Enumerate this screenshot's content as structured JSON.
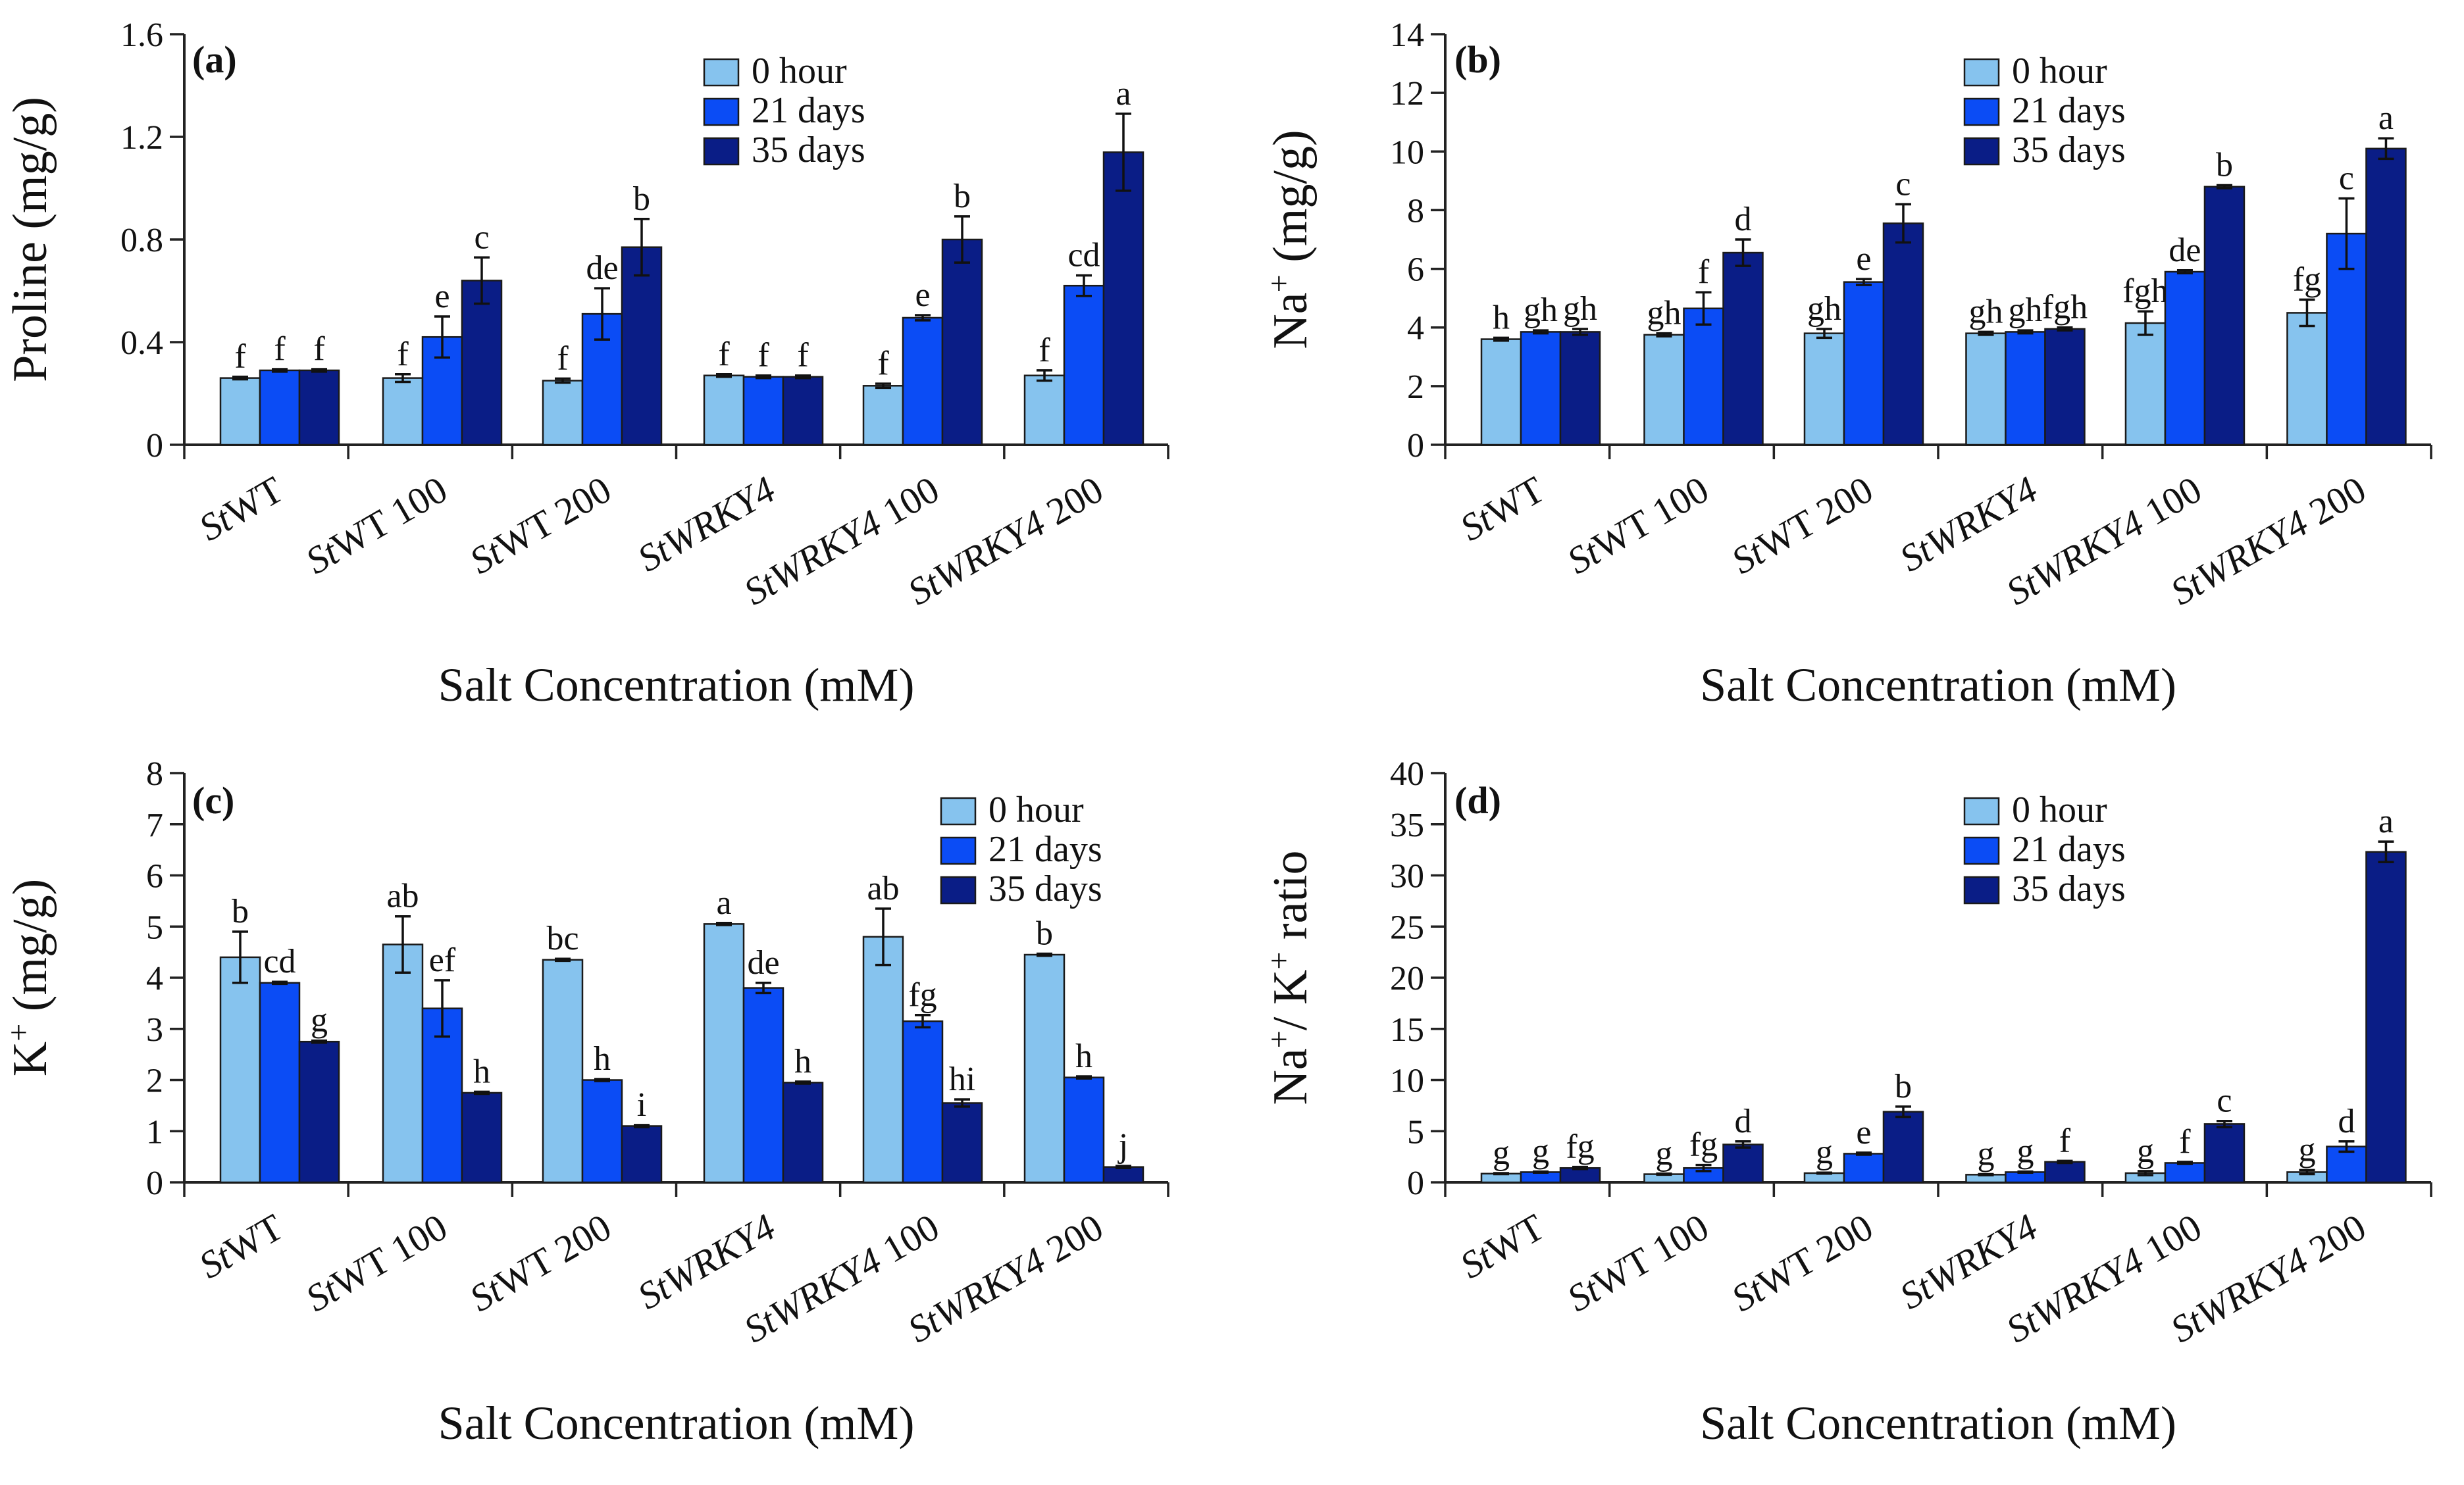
{
  "colors": {
    "s0": "#86c3ee",
    "s1": "#0b4cf5",
    "s2": "#0a1d86"
  },
  "chart_data": [
    {
      "type": "bar",
      "panel_label": "(a)",
      "ylabel": "Proline (mg/g)",
      "ylabel_main": "Proline (mg/g)",
      "xlabel": "Salt Concentration (mM)",
      "ylim": [
        0,
        1.6
      ],
      "yticks": [
        "0",
        "0.4",
        "0.8",
        "1.2",
        "1.6"
      ],
      "ytick_values": [
        0,
        0.4,
        0.8,
        1.2,
        1.6
      ],
      "legend_position": "top-center",
      "categories": [
        {
          "italic": "St",
          "rest": "WT"
        },
        {
          "italic": "St",
          "rest": "WT 100"
        },
        {
          "italic": "St",
          "rest": "WT 200"
        },
        {
          "italic": "StWRKY4",
          "rest": ""
        },
        {
          "italic": "StWRKY4",
          "rest": " 100"
        },
        {
          "italic": "StWRKY4",
          "rest": " 200"
        }
      ],
      "series": [
        {
          "name": "0 hour",
          "values": [
            0.26,
            0.26,
            0.25,
            0.27,
            0.23,
            0.27
          ],
          "errors": [
            0.005,
            0.015,
            0.008,
            0.005,
            0.008,
            0.02
          ],
          "labels": [
            "f",
            "f",
            "f",
            "f",
            "f",
            "f"
          ]
        },
        {
          "name": "21 days",
          "values": [
            0.29,
            0.42,
            0.51,
            0.265,
            0.495,
            0.62
          ],
          "errors": [
            0.005,
            0.08,
            0.1,
            0.005,
            0.01,
            0.04
          ],
          "labels": [
            "f",
            "e",
            "de",
            "f",
            "e",
            "cd"
          ]
        },
        {
          "name": "35 days",
          "values": [
            0.29,
            0.64,
            0.77,
            0.265,
            0.8,
            1.14
          ],
          "errors": [
            0.005,
            0.09,
            0.11,
            0.005,
            0.09,
            0.15
          ],
          "labels": [
            "f",
            "c",
            "b",
            "f",
            "b",
            "a"
          ]
        }
      ]
    },
    {
      "type": "bar",
      "panel_label": "(b)",
      "ylabel": "Na+ (mg/g)",
      "ylabel_main": "Na",
      "ylabel_sup": "+",
      "ylabel_rest": " (mg/g)",
      "xlabel": "Salt Concentration (mM)",
      "ylim": [
        0,
        14
      ],
      "yticks": [
        "0",
        "2",
        "4",
        "6",
        "8",
        "10",
        "12",
        "14"
      ],
      "ytick_values": [
        0,
        2,
        4,
        6,
        8,
        10,
        12,
        14
      ],
      "legend_position": "top-center",
      "categories": [
        {
          "italic": "St",
          "rest": "WT"
        },
        {
          "italic": "St",
          "rest": "WT 100"
        },
        {
          "italic": "St",
          "rest": "WT 200"
        },
        {
          "italic": "StWRKY4",
          "rest": ""
        },
        {
          "italic": "StWRKY4",
          "rest": " 100"
        },
        {
          "italic": "StWRKY4",
          "rest": " 200"
        }
      ],
      "series": [
        {
          "name": "0 hour",
          "values": [
            3.6,
            3.75,
            3.8,
            3.8,
            4.15,
            4.5
          ],
          "errors": [
            0.05,
            0.05,
            0.15,
            0.05,
            0.4,
            0.45
          ],
          "labels": [
            "h",
            "gh",
            "gh",
            "gh",
            "fgh",
            "fg"
          ]
        },
        {
          "name": "21 days",
          "values": [
            3.85,
            4.65,
            5.55,
            3.85,
            5.9,
            7.2
          ],
          "errors": [
            0.05,
            0.55,
            0.1,
            0.05,
            0.05,
            1.2
          ],
          "labels": [
            "gh",
            "f",
            "e",
            "gh",
            "de",
            "c"
          ]
        },
        {
          "name": "35 days",
          "values": [
            3.85,
            6.55,
            7.55,
            3.95,
            8.8,
            10.1
          ],
          "errors": [
            0.1,
            0.45,
            0.65,
            0.05,
            0.05,
            0.35
          ],
          "labels": [
            "gh",
            "d",
            "c",
            "fgh",
            "b",
            "a"
          ]
        }
      ]
    },
    {
      "type": "bar",
      "panel_label": "(c)",
      "ylabel": "K+ (mg/g)",
      "ylabel_main": "K",
      "ylabel_sup": "+",
      "ylabel_rest": " (mg/g)",
      "xlabel": "Salt Concentration (mM)",
      "ylim": [
        0,
        8
      ],
      "yticks": [
        "0",
        "1",
        "2",
        "3",
        "4",
        "5",
        "6",
        "7",
        "8"
      ],
      "ytick_values": [
        0,
        1,
        2,
        3,
        4,
        5,
        6,
        7,
        8
      ],
      "legend_position": "top-right",
      "categories": [
        {
          "italic": "St",
          "rest": "WT"
        },
        {
          "italic": "St",
          "rest": "WT 100"
        },
        {
          "italic": "St",
          "rest": "WT 200"
        },
        {
          "italic": "StWRKY4",
          "rest": ""
        },
        {
          "italic": "StWRKY4",
          "rest": " 100"
        },
        {
          "italic": "StWRKY4",
          "rest": " 200"
        }
      ],
      "series": [
        {
          "name": "0 hour",
          "values": [
            4.4,
            4.65,
            4.35,
            5.05,
            4.8,
            4.45
          ],
          "errors": [
            0.5,
            0.55,
            0.02,
            0.02,
            0.55,
            0.02
          ],
          "labels": [
            "b",
            "ab",
            "bc",
            "a",
            "ab",
            "b"
          ]
        },
        {
          "name": "21 days",
          "values": [
            3.9,
            3.4,
            2.0,
            3.8,
            3.15,
            2.05
          ],
          "errors": [
            0.02,
            0.55,
            0.02,
            0.1,
            0.12,
            0.02
          ],
          "labels": [
            "cd",
            "ef",
            "h",
            "de",
            "fg",
            "h"
          ]
        },
        {
          "name": "35 days",
          "values": [
            2.75,
            1.75,
            1.1,
            1.95,
            1.55,
            0.3
          ],
          "errors": [
            0.02,
            0.02,
            0.02,
            0.02,
            0.07,
            0.02
          ],
          "labels": [
            "g",
            "h",
            "i",
            "h",
            "hi",
            "j"
          ]
        }
      ]
    },
    {
      "type": "bar",
      "panel_label": "(d)",
      "ylabel": "Na+/ K+ ratio",
      "ylabel_main": "Na",
      "ylabel_sup": "+",
      "ylabel_mid": "/ K",
      "ylabel_sup2": "+",
      "ylabel_rest": " ratio",
      "xlabel": "Salt Concentration (mM)",
      "ylim": [
        0,
        40
      ],
      "yticks": [
        "0",
        "5",
        "10",
        "15",
        "20",
        "25",
        "30",
        "35",
        "40"
      ],
      "ytick_values": [
        0,
        5,
        10,
        15,
        20,
        25,
        30,
        35,
        40
      ],
      "legend_position": "top-center",
      "categories": [
        {
          "italic": "St",
          "rest": "WT"
        },
        {
          "italic": "St",
          "rest": "WT 100"
        },
        {
          "italic": "St",
          "rest": "WT 200"
        },
        {
          "italic": "StWRKY4",
          "rest": ""
        },
        {
          "italic": "StWRKY4",
          "rest": " 100"
        },
        {
          "italic": "StWRKY4",
          "rest": " 200"
        }
      ],
      "series": [
        {
          "name": "0 hour",
          "values": [
            0.85,
            0.8,
            0.9,
            0.75,
            0.9,
            1.0
          ],
          "errors": [
            0.05,
            0.05,
            0.05,
            0.05,
            0.2,
            0.2
          ],
          "labels": [
            "g",
            "g",
            "g",
            "g",
            "g",
            "g"
          ]
        },
        {
          "name": "21 days",
          "values": [
            1.0,
            1.4,
            2.8,
            1.0,
            1.9,
            3.5
          ],
          "errors": [
            0.05,
            0.3,
            0.1,
            0.05,
            0.1,
            0.5
          ],
          "labels": [
            "g",
            "fg",
            "e",
            "g",
            "f",
            "d"
          ]
        },
        {
          "name": "35 days",
          "values": [
            1.4,
            3.7,
            6.9,
            2.0,
            5.7,
            32.3
          ],
          "errors": [
            0.1,
            0.3,
            0.5,
            0.1,
            0.3,
            1.0
          ],
          "labels": [
            "fg",
            "d",
            "b",
            "f",
            "c",
            "a"
          ]
        }
      ]
    }
  ]
}
